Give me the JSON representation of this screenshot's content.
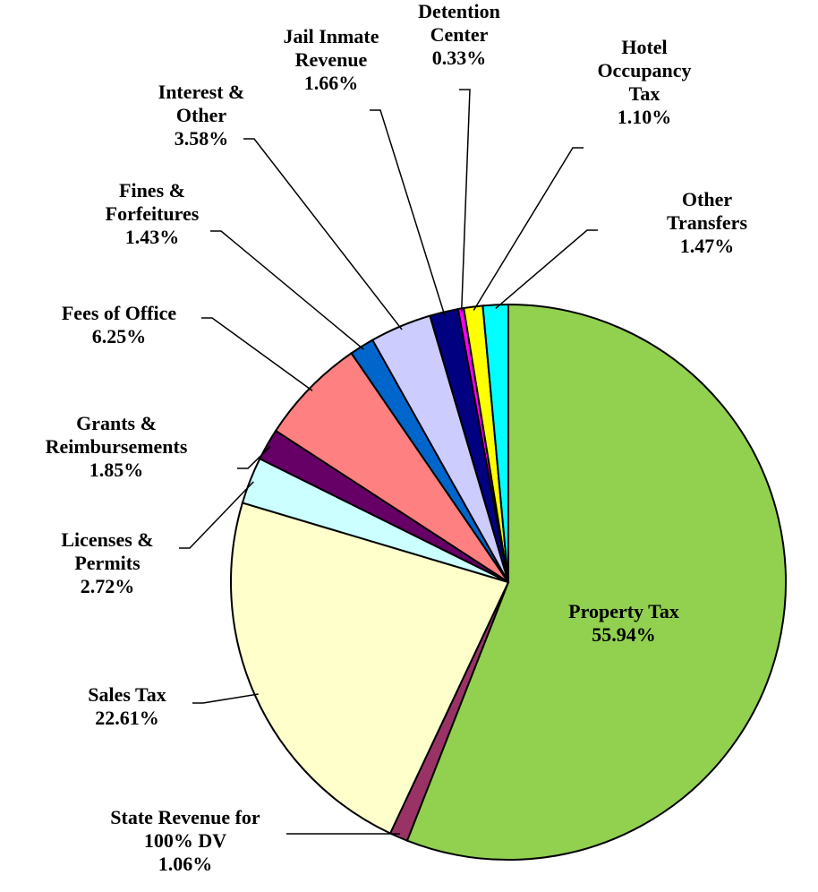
{
  "chart_data": {
    "type": "pie",
    "categories": [
      "Property Tax",
      "State Revenue for\n100% DV",
      "Sales Tax",
      "Licenses &\nPermits",
      "Grants &\nReimbursements",
      "Fees of Office",
      "Fines &\nForfeitures",
      "Interest &\nOther",
      "Jail Inmate\nRevenue",
      "Detention\nCenter",
      "Hotel\nOccupancy\nTax",
      "Other Transfers"
    ],
    "values": [
      55.94,
      1.06,
      22.61,
      2.72,
      1.85,
      6.25,
      1.43,
      3.58,
      1.66,
      0.33,
      1.1,
      1.47
    ],
    "value_labels": [
      "55.94%",
      "1.06%",
      "22.61%",
      "2.72%",
      "1.85%",
      "6.25%",
      "1.43%",
      "3.58%",
      "1.66%",
      "0.33%",
      "1.10%",
      "1.47%"
    ],
    "colors": [
      "#92d050",
      "#993366",
      "#ffffcc",
      "#ccffff",
      "#660066",
      "#ff8080",
      "#0066cc",
      "#ccccff",
      "#000080",
      "#ff00ff",
      "#ffff00",
      "#00ffff"
    ]
  }
}
